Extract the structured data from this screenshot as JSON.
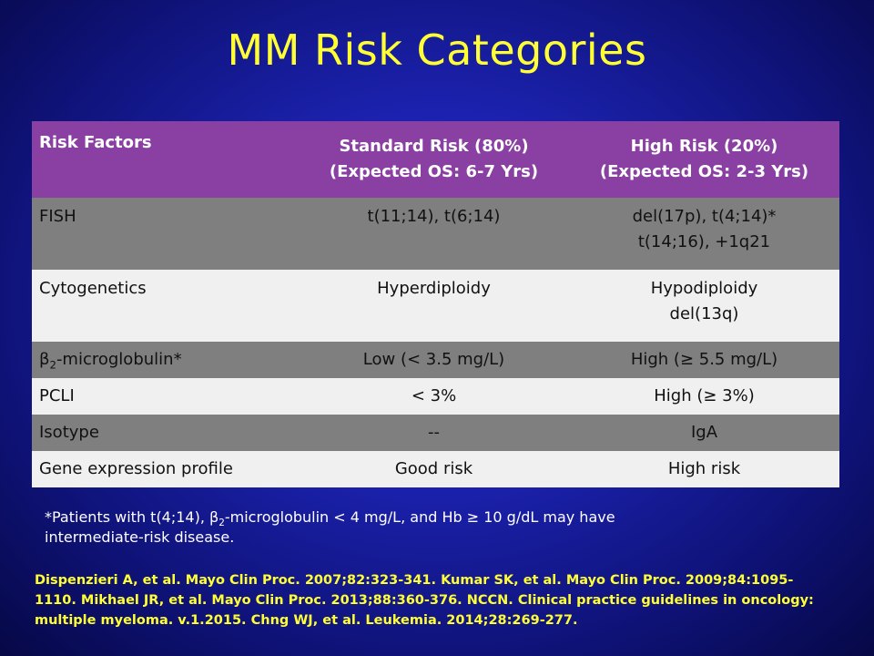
{
  "title": "MM Risk Categories",
  "table": {
    "headers": [
      {
        "line1": "Risk Factors",
        "line2": ""
      },
      {
        "line1": "Standard Risk (80%)",
        "line2": "(Expected OS: 6-7 Yrs)"
      },
      {
        "line1": "High Risk (20%)",
        "line2": "(Expected OS: 2-3 Yrs)"
      }
    ],
    "rows": [
      {
        "factor": "FISH",
        "factor_sub": "",
        "factor_suffix": "",
        "standard": "t(11;14), t(6;14)",
        "standard_2": "",
        "high": "del(17p), t(4;14)*",
        "high_2": "t(14;16), +1q21"
      },
      {
        "factor": "Cytogenetics",
        "factor_sub": "",
        "factor_suffix": "",
        "standard": "Hyperdiploidy",
        "standard_2": "",
        "high": "Hypodiploidy",
        "high_2": "del(13q)"
      },
      {
        "factor": "β",
        "factor_sub": "2",
        "factor_suffix": "-microglobulin*",
        "standard": "Low (< 3.5 mg/L)",
        "standard_2": "",
        "high": "High (≥ 5.5 mg/L)",
        "high_2": ""
      },
      {
        "factor": "PCLI",
        "factor_sub": "",
        "factor_suffix": "",
        "standard": "< 3%",
        "standard_2": "",
        "high": "High (≥ 3%)",
        "high_2": ""
      },
      {
        "factor": "Isotype",
        "factor_sub": "",
        "factor_suffix": "",
        "standard": "--",
        "standard_2": "",
        "high": "IgA",
        "high_2": ""
      },
      {
        "factor": "Gene expression profile",
        "factor_sub": "",
        "factor_suffix": "",
        "standard": "Good risk",
        "standard_2": "",
        "high": "High risk",
        "high_2": ""
      }
    ]
  },
  "footnote": {
    "part1": "*Patients with t(4;14), β",
    "sub": "2",
    "part2": "-microglobulin < 4 mg/L, and Hb ≥ 10 g/dL may have",
    "line2": "intermediate-risk disease."
  },
  "references": {
    "line1": "Dispenzieri A, et al. Mayo Clin Proc. 2007;82:323-341. Kumar SK, et al. Mayo Clin Proc. 2009;84:1095-",
    "line2": "1110. Mikhael JR, et al. Mayo Clin Proc. 2013;88:360-376. NCCN. Clinical practice guidelines in oncology:",
    "line3": "multiple myeloma. v.1.2015. Chng WJ, et al. Leukemia. 2014;28:269-277."
  },
  "colors": {
    "title": "#ffff33",
    "header_bg": "#8a3fa2",
    "row_dark": "#7f7f7f",
    "row_light": "#f0f0f0",
    "references": "#ffff33"
  }
}
